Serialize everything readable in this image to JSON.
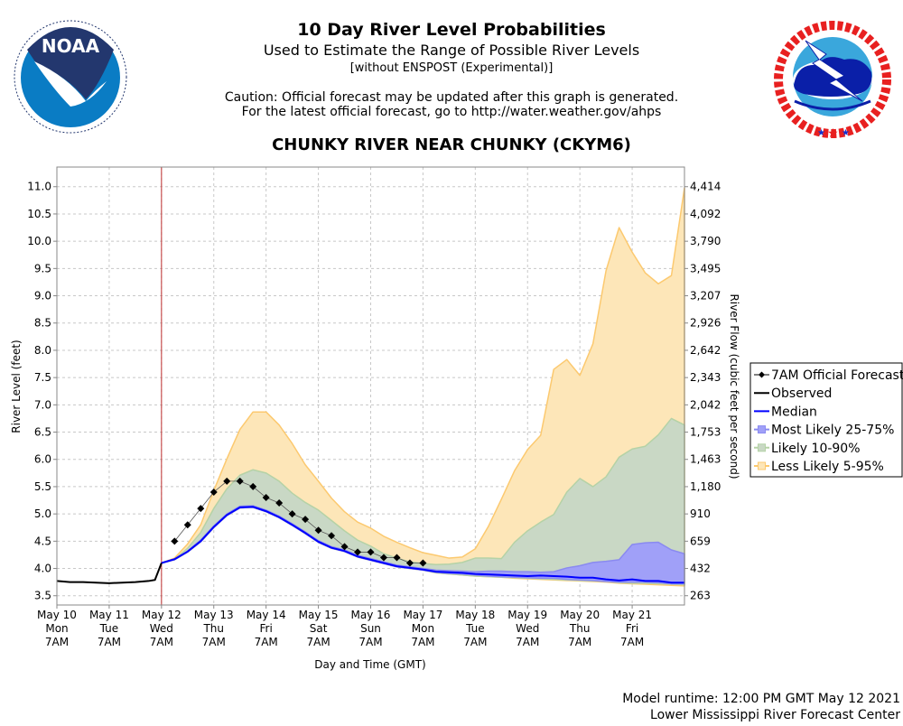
{
  "header": {
    "title": "10 Day River Level Probabilities",
    "subtitle": "Used to Estimate the Range of Possible River Levels",
    "note": "[without ENSPOST (Experimental)]",
    "caution_1": "Caution: Official forecast may be updated after this graph is generated.",
    "caution_2": "For the latest official forecast, go to http://water.weather.gov/ahps",
    "station": "CHUNKY RIVER NEAR CHUNKY (CKYM6)"
  },
  "logos": {
    "left": {
      "text": "NOAA",
      "ring": "NATIONAL OCEANIC AND ATMOSPHERIC ADMINISTRATION · U.S. DEPARTMENT OF COMMERCE"
    },
    "right": {
      "ring": "NATIONAL WEATHER SERVICE"
    }
  },
  "footer": {
    "runtime": "Model runtime: 12:00 PM GMT May 12 2021",
    "center": "Lower Mississippi River Forecast Center"
  },
  "chart_data": {
    "type": "area",
    "xlabel": "Day and Time (GMT)",
    "ylabel": "River Level (feet)",
    "ylabel_right": "River Flow (cubic feet per second)",
    "ylim": [
      3.33,
      11.36
    ],
    "xlim": [
      "2021-05-10T07:00",
      "2021-05-22T07:00"
    ],
    "grid": true,
    "legend_placement": "right",
    "y_ticks": [
      11.0,
      10.5,
      10.0,
      9.5,
      9.0,
      8.5,
      8.0,
      7.5,
      7.0,
      6.5,
      6.0,
      5.5,
      5.0,
      4.5,
      4.0,
      3.5
    ],
    "y_tick_labels": [
      "11.0",
      "10.5",
      "10.0",
      "9.5",
      "9.0",
      "8.5",
      "8.0",
      "7.5",
      "7.0",
      "6.5",
      "6.0",
      "5.5",
      "5.0",
      "4.5",
      "4.0",
      "3.5"
    ],
    "y_right_tick_labels": [
      "4,414",
      "4,092",
      "3,790",
      "3,495",
      "3,207",
      "2,926",
      "2,642",
      "2,343",
      "2,042",
      "1,753",
      "1,463",
      "1,180",
      "910",
      "659",
      "432",
      "263"
    ],
    "x_ticks": [
      {
        "date": "May 10",
        "dow": "Mon",
        "time": "7AM"
      },
      {
        "date": "May 11",
        "dow": "Tue",
        "time": "7AM"
      },
      {
        "date": "May 12",
        "dow": "Wed",
        "time": "7AM"
      },
      {
        "date": "May 13",
        "dow": "Thu",
        "time": "7AM"
      },
      {
        "date": "May 14",
        "dow": "Fri",
        "time": "7AM"
      },
      {
        "date": "May 15",
        "dow": "Sat",
        "time": "7AM"
      },
      {
        "date": "May 16",
        "dow": "Sun",
        "time": "7AM"
      },
      {
        "date": "May 17",
        "dow": "Mon",
        "time": "7AM"
      },
      {
        "date": "May 18",
        "dow": "Tue",
        "time": "7AM"
      },
      {
        "date": "May 19",
        "dow": "Wed",
        "time": "7AM"
      },
      {
        "date": "May 20",
        "dow": "Thu",
        "time": "7AM"
      },
      {
        "date": "May 21",
        "dow": "Fri",
        "time": "7AM"
      }
    ],
    "current_time_marker": "2021-05-12T07:00",
    "legend": [
      {
        "key": "official",
        "label": "7AM Official Forecast"
      },
      {
        "key": "observed",
        "label": "Observed"
      },
      {
        "key": "median",
        "label": "Median"
      },
      {
        "key": "band25",
        "label": "Most Likely 25-75%"
      },
      {
        "key": "band10",
        "label": "Likely 10-90%"
      },
      {
        "key": "band5",
        "label": "Less Likely 5-95%"
      }
    ],
    "colors": {
      "official": "#000000",
      "observed": "#000000",
      "median": "#0000ff",
      "band25_fill": "#a0a0f8",
      "band25_line": "#8a8af0",
      "band10_fill": "#c9d8c5",
      "band10_line": "#b5d2a6",
      "band5_fill": "#fde6b8",
      "band5_line": "#fcc96f",
      "marker_line": "#c03030"
    },
    "observed": {
      "x": [
        "2021-05-10T07:00",
        "2021-05-10T13:00",
        "2021-05-10T19:00",
        "2021-05-11T01:00",
        "2021-05-11T07:00",
        "2021-05-11T13:00",
        "2021-05-11T19:00",
        "2021-05-12T01:00",
        "2021-05-12T04:00",
        "2021-05-12T07:00"
      ],
      "y": [
        3.77,
        3.75,
        3.75,
        3.74,
        3.73,
        3.74,
        3.75,
        3.77,
        3.79,
        4.1
      ]
    },
    "official_forecast": {
      "x_start": "2021-05-12T13:00",
      "step_hours": 6,
      "y": [
        4.5,
        4.8,
        5.1,
        5.4,
        5.6,
        5.6,
        5.5,
        5.3,
        5.2,
        5.0,
        4.9,
        4.7,
        4.6,
        4.4,
        4.3,
        4.3,
        4.2,
        4.2,
        4.1,
        4.1
      ]
    },
    "ensemble": {
      "x_start": "2021-05-12T07:00",
      "step_hours": 6,
      "median": [
        4.1,
        4.17,
        4.31,
        4.5,
        4.76,
        4.98,
        5.12,
        5.13,
        5.05,
        4.94,
        4.8,
        4.65,
        4.49,
        4.38,
        4.32,
        4.22,
        4.16,
        4.1,
        4.04,
        4.01,
        3.98,
        3.94,
        3.93,
        3.92,
        3.9,
        3.89,
        3.88,
        3.87,
        3.86,
        3.87,
        3.86,
        3.85,
        3.83,
        3.83,
        3.8,
        3.78,
        3.8,
        3.77,
        3.77,
        3.74,
        3.74
      ],
      "p95": [
        4.1,
        4.19,
        4.45,
        4.8,
        5.43,
        6.01,
        6.55,
        6.87,
        6.87,
        6.63,
        6.29,
        5.9,
        5.6,
        5.29,
        5.04,
        4.85,
        4.74,
        4.59,
        4.48,
        4.38,
        4.29,
        4.24,
        4.19,
        4.21,
        4.36,
        4.77,
        5.27,
        5.79,
        6.18,
        6.44,
        7.65,
        7.83,
        7.54,
        8.12,
        9.46,
        10.25,
        9.8,
        9.42,
        9.22,
        9.37,
        10.98
      ],
      "p90": [
        4.1,
        4.17,
        4.37,
        4.66,
        5.1,
        5.46,
        5.71,
        5.81,
        5.75,
        5.6,
        5.38,
        5.21,
        5.07,
        4.88,
        4.69,
        4.52,
        4.41,
        4.27,
        4.19,
        4.12,
        4.09,
        4.07,
        4.08,
        4.11,
        4.19,
        4.19,
        4.18,
        4.48,
        4.69,
        4.85,
        4.99,
        5.4,
        5.65,
        5.5,
        5.68,
        6.04,
        6.19,
        6.24,
        6.45,
        6.75,
        6.63
      ],
      "p75": [
        4.1,
        4.17,
        4.32,
        4.52,
        4.78,
        5.0,
        5.14,
        5.15,
        5.07,
        4.96,
        4.82,
        4.67,
        4.51,
        4.4,
        4.34,
        4.24,
        4.18,
        4.12,
        4.06,
        4.03,
        4.0,
        3.97,
        3.96,
        3.95,
        3.94,
        3.95,
        3.95,
        3.94,
        3.94,
        3.93,
        3.94,
        4.01,
        4.05,
        4.11,
        4.13,
        4.16,
        4.44,
        4.47,
        4.48,
        4.34,
        4.27
      ],
      "p25": [
        4.1,
        4.16,
        4.3,
        4.49,
        4.75,
        4.97,
        5.11,
        5.12,
        5.04,
        4.93,
        4.79,
        4.64,
        4.48,
        4.37,
        4.31,
        4.21,
        4.15,
        4.09,
        4.03,
        4.0,
        3.97,
        3.93,
        3.91,
        3.9,
        3.88,
        3.86,
        3.85,
        3.84,
        3.83,
        3.82,
        3.82,
        3.8,
        3.79,
        3.78,
        3.76,
        3.75,
        3.75,
        3.75,
        3.74,
        3.72,
        3.72
      ],
      "p10": [
        4.1,
        4.16,
        4.3,
        4.49,
        4.75,
        4.97,
        5.11,
        5.12,
        5.04,
        4.93,
        4.79,
        4.64,
        4.48,
        4.37,
        4.31,
        4.21,
        4.15,
        4.09,
        4.03,
        4.0,
        3.97,
        3.92,
        3.9,
        3.88,
        3.86,
        3.85,
        3.84,
        3.83,
        3.82,
        3.81,
        3.8,
        3.79,
        3.78,
        3.77,
        3.76,
        3.74,
        3.73,
        3.73,
        3.72,
        3.71,
        3.7
      ],
      "p5": [
        4.1,
        4.16,
        4.3,
        4.49,
        4.75,
        4.97,
        5.11,
        5.12,
        5.04,
        4.93,
        4.79,
        4.64,
        4.48,
        4.37,
        4.31,
        4.21,
        4.15,
        4.09,
        4.03,
        4.0,
        3.97,
        3.92,
        3.9,
        3.88,
        3.86,
        3.85,
        3.84,
        3.82,
        3.81,
        3.8,
        3.79,
        3.78,
        3.77,
        3.76,
        3.75,
        3.73,
        3.72,
        3.71,
        3.7,
        3.69,
        3.68
      ]
    }
  }
}
